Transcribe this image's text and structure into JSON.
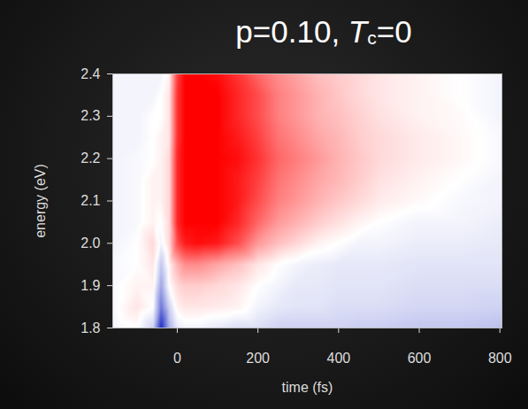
{
  "chart_data": {
    "type": "heatmap",
    "title": "p=0.10, Tc=0",
    "xlabel": "time (fs)",
    "ylabel": "energy (eV)",
    "xlim": [
      -160,
      805
    ],
    "ylim": [
      1.8,
      2.4
    ],
    "xticks": [
      0,
      200,
      400,
      600,
      800
    ],
    "yticks": [
      1.8,
      1.9,
      {
        "value": 2.0,
        "label": "2.0"
      },
      2.1,
      2.2,
      2.3,
      2.4
    ],
    "zlim": [
      -1,
      1
    ],
    "colors": [
      "#1020c0",
      "#ffffff",
      "#ff0000"
    ],
    "x": [
      -160,
      -100,
      -60,
      -40,
      -20,
      0,
      20,
      50,
      100,
      150,
      200,
      250,
      300,
      350,
      400,
      450,
      500,
      600,
      700,
      805
    ],
    "y": [
      1.8,
      1.85,
      1.9,
      1.95,
      2.0,
      2.05,
      2.1,
      2.15,
      2.2,
      2.25,
      2.3,
      2.35,
      2.4
    ],
    "values": [
      [
        -0.05,
        0.0,
        -0.2,
        -0.95,
        -0.35,
        -0.1,
        -0.05,
        -0.05,
        -0.1,
        -0.15,
        -0.15,
        -0.2,
        -0.2,
        -0.2,
        -0.2,
        -0.22,
        -0.22,
        -0.25,
        -0.25,
        -0.28
      ],
      [
        -0.03,
        0.1,
        0.0,
        -0.6,
        -0.2,
        0.05,
        0.1,
        0.1,
        0.08,
        0.05,
        -0.05,
        -0.1,
        -0.12,
        -0.12,
        -0.15,
        -0.15,
        -0.15,
        -0.18,
        -0.18,
        -0.2
      ],
      [
        -0.03,
        0.05,
        0.05,
        -0.4,
        0.0,
        0.15,
        0.2,
        0.2,
        0.15,
        0.1,
        0.0,
        -0.05,
        -0.1,
        -0.1,
        -0.12,
        -0.12,
        -0.12,
        -0.15,
        -0.15,
        -0.15
      ],
      [
        -0.03,
        0.0,
        0.1,
        -0.25,
        0.05,
        0.3,
        0.45,
        0.45,
        0.35,
        0.25,
        0.1,
        0.0,
        -0.05,
        -0.08,
        -0.1,
        -0.1,
        -0.1,
        -0.12,
        -0.12,
        -0.12
      ],
      [
        -0.05,
        0.0,
        0.15,
        -0.05,
        0.15,
        0.7,
        0.9,
        0.95,
        0.9,
        0.7,
        0.4,
        0.25,
        0.15,
        0.05,
        0.0,
        -0.05,
        -0.05,
        -0.08,
        -0.08,
        -0.1
      ],
      [
        -0.05,
        -0.03,
        0.05,
        0.0,
        0.15,
        0.85,
        1.0,
        1.0,
        1.0,
        0.85,
        0.6,
        0.4,
        0.3,
        0.2,
        0.12,
        0.05,
        0.0,
        -0.05,
        -0.05,
        -0.08
      ],
      [
        -0.05,
        -0.03,
        0.05,
        0.05,
        0.15,
        0.85,
        1.0,
        1.0,
        1.0,
        0.9,
        0.7,
        0.5,
        0.4,
        0.3,
        0.22,
        0.15,
        0.08,
        0.02,
        -0.03,
        -0.05
      ],
      [
        -0.05,
        -0.03,
        0.05,
        0.05,
        0.15,
        0.85,
        1.0,
        1.0,
        1.0,
        0.9,
        0.75,
        0.55,
        0.45,
        0.35,
        0.28,
        0.2,
        0.12,
        0.05,
        0.0,
        -0.05
      ],
      [
        -0.05,
        -0.03,
        0.0,
        0.05,
        0.15,
        0.85,
        1.0,
        1.0,
        1.0,
        0.95,
        0.8,
        0.6,
        0.5,
        0.4,
        0.3,
        0.22,
        0.15,
        0.08,
        0.03,
        -0.03
      ],
      [
        -0.05,
        -0.05,
        0.0,
        0.05,
        0.1,
        0.8,
        1.0,
        1.0,
        1.0,
        0.9,
        0.75,
        0.55,
        0.45,
        0.35,
        0.28,
        0.2,
        0.15,
        0.08,
        0.03,
        -0.03
      ],
      [
        -0.05,
        -0.05,
        0.0,
        0.0,
        0.1,
        0.8,
        1.0,
        1.0,
        1.0,
        0.85,
        0.7,
        0.5,
        0.4,
        0.3,
        0.25,
        0.18,
        0.12,
        0.05,
        0.02,
        -0.05
      ],
      [
        -0.05,
        -0.05,
        -0.05,
        0.0,
        0.1,
        0.8,
        1.0,
        1.0,
        1.0,
        0.85,
        0.7,
        0.5,
        0.4,
        0.3,
        0.22,
        0.15,
        0.1,
        0.05,
        0.0,
        -0.05
      ],
      [
        -0.05,
        -0.05,
        -0.05,
        -0.05,
        0.05,
        0.75,
        1.0,
        1.0,
        0.95,
        0.8,
        0.6,
        0.45,
        0.35,
        0.25,
        0.2,
        0.15,
        0.1,
        0.05,
        0.0,
        -0.05
      ]
    ]
  }
}
